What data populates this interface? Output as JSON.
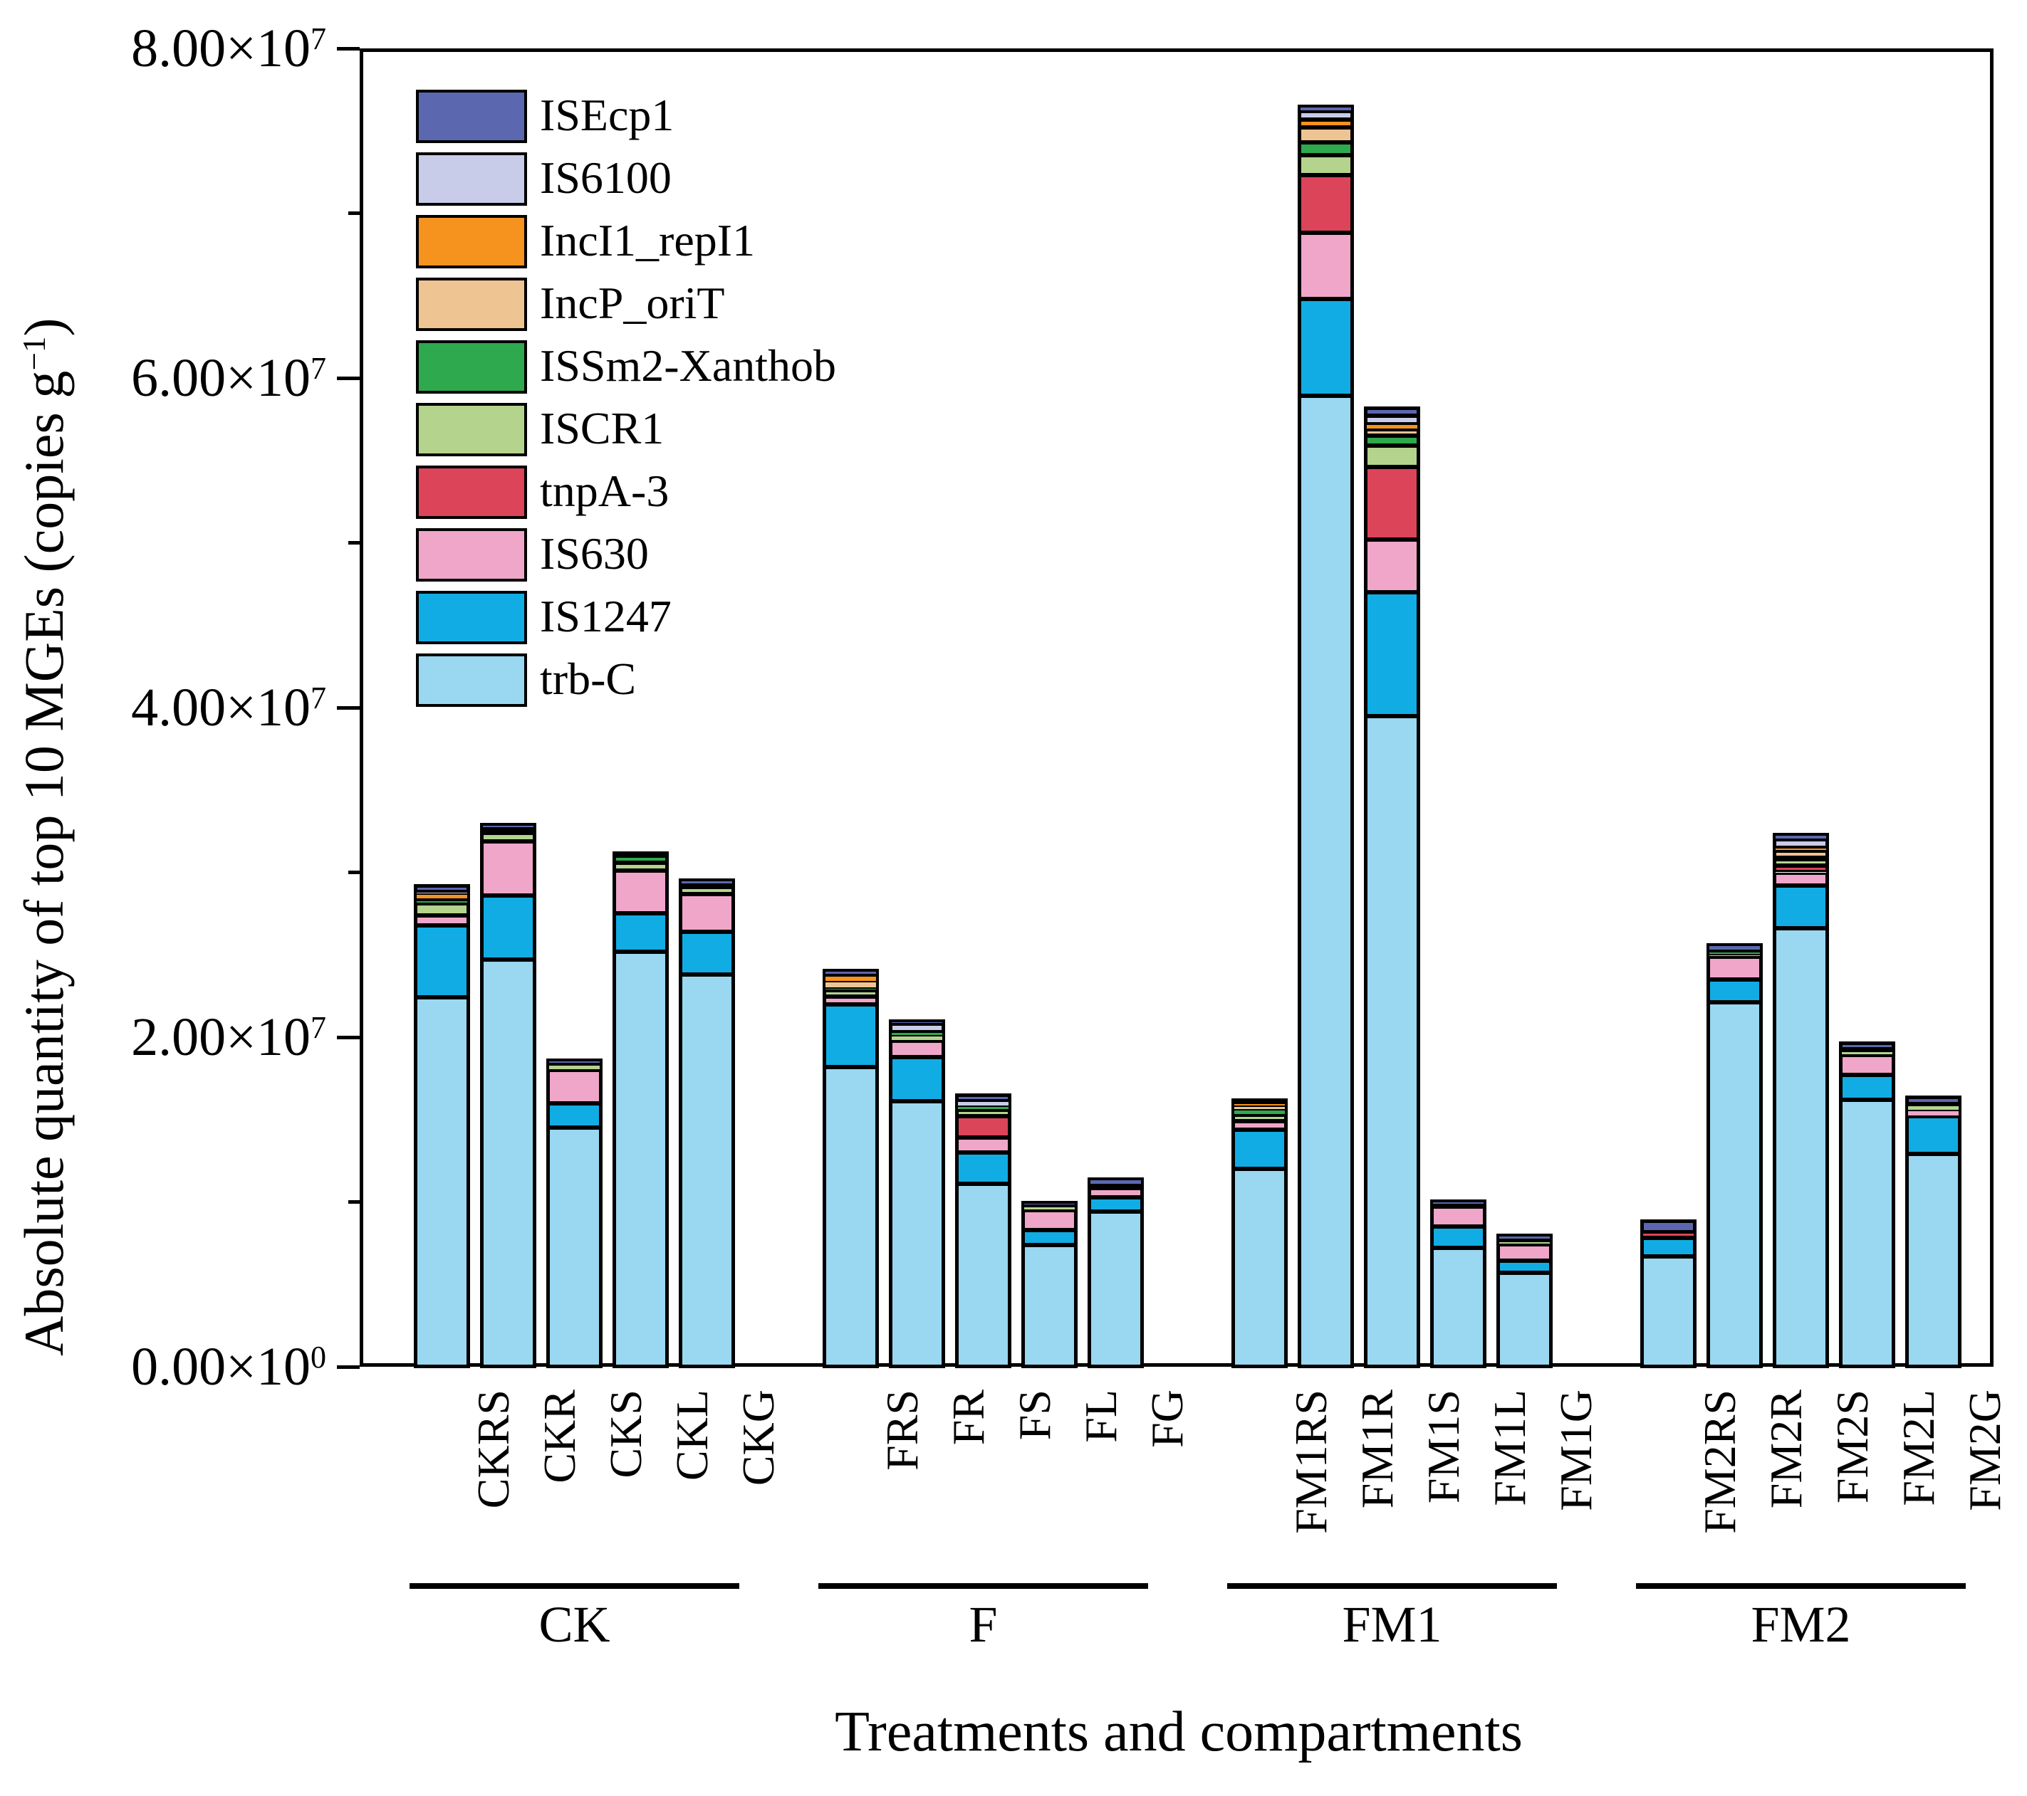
{
  "figure": {
    "y_axis": {
      "title_parts": [
        {
          "text": "Absolute quantity of top 10 MGEs (copies g"
        },
        {
          "text": "−1",
          "sup": true
        },
        {
          "text": ")"
        }
      ],
      "major_ticks": [
        {
          "mantissa": "0.00×10",
          "exp": "0",
          "value": 0
        },
        {
          "mantissa": "2.00×10",
          "exp": "7",
          "value": 2
        },
        {
          "mantissa": "4.00×10",
          "exp": "7",
          "value": 4
        },
        {
          "mantissa": "6.00×10",
          "exp": "7",
          "value": 6
        },
        {
          "mantissa": "8.00×10",
          "exp": "7",
          "value": 8
        }
      ],
      "minor_tick_values": [
        1,
        3,
        5,
        7
      ]
    },
    "x_axis": {
      "title": "Treatments and compartments",
      "groups": [
        {
          "label": "CK",
          "categories": [
            "CKRS",
            "CKR",
            "CKS",
            "CKL",
            "CKG"
          ]
        },
        {
          "label": "F",
          "categories": [
            "FRS",
            "FR",
            "FS",
            "FL",
            "FG"
          ]
        },
        {
          "label": "FM1",
          "categories": [
            "FM1RS",
            "FM1R",
            "FM1S",
            "FM1L",
            "FM1G"
          ]
        },
        {
          "label": "FM2",
          "categories": [
            "FM2RS",
            "FM2R",
            "FM2S",
            "FM2L",
            "FM2G"
          ]
        }
      ]
    },
    "legend": {
      "items": [
        {
          "label": "ISEcp1",
          "color": "#5B68AF"
        },
        {
          "label": "IS6100",
          "color": "#C8CCE9"
        },
        {
          "label": "IncI1_repI1",
          "color": "#F6921E"
        },
        {
          "label": "IncP_oriT",
          "color": "#EFC493"
        },
        {
          "label": "ISSm2-Xanthob",
          "color": "#2FA94D"
        },
        {
          "label": "ISCR1",
          "color": "#B4D48D"
        },
        {
          "label": "tnpA-3",
          "color": "#DC4459"
        },
        {
          "label": "IS630",
          "color": "#EFA6C9"
        },
        {
          "label": "IS1247",
          "color": "#12ACE4"
        },
        {
          "label": "trb-C",
          "color": "#9AD7F1"
        }
      ]
    }
  },
  "chart_data": {
    "type": "bar",
    "stacked": true,
    "title": "",
    "xlabel": "Treatments and compartments",
    "ylabel": "Absolute quantity of top 10 MGEs (copies g⁻¹)",
    "value_unit": "×10⁷ copies g⁻¹",
    "ylim": [
      0,
      8
    ],
    "grid": false,
    "legend_position": "upper-left-inside",
    "categories": [
      "CKRS",
      "CKR",
      "CKS",
      "CKL",
      "CKG",
      "FRS",
      "FR",
      "FS",
      "FL",
      "FG",
      "FM1RS",
      "FM1R",
      "FM1S",
      "FM1L",
      "FM1G",
      "FM2RS",
      "FM2R",
      "FM2S",
      "FM2L",
      "FM2G"
    ],
    "stacking_order_bottom_to_top": [
      "trb-C",
      "IS1247",
      "IS630",
      "tnpA-3",
      "ISCR1",
      "ISSm2-Xanthob",
      "IncP_oriT",
      "IncI1_repI1",
      "IS6100",
      "ISEcp1"
    ],
    "series": [
      {
        "name": "ISEcp1",
        "color": "#5B68AF",
        "values": [
          0.04,
          0.02,
          0.02,
          0.015,
          0.025,
          0.025,
          0.02,
          0.04,
          0.02,
          0.035,
          0.015,
          0.03,
          0.05,
          0.02,
          0.025,
          0.07,
          0.035,
          0.03,
          0.04,
          0.04
        ]
      },
      {
        "name": "IS6100",
        "color": "#C8CCE9",
        "values": [
          0.01,
          0.01,
          0.005,
          0.005,
          0.01,
          0.01,
          0.05,
          0.03,
          0.005,
          0.005,
          0.005,
          0.05,
          0.05,
          0.005,
          0.005,
          0.005,
          0.005,
          0.05,
          0.005,
          0.005
        ]
      },
      {
        "name": "IncI1_repI1",
        "color": "#F6921E",
        "values": [
          0.03,
          0.005,
          0,
          0,
          0,
          0.035,
          0,
          0,
          0,
          0,
          0.02,
          0.05,
          0.03,
          0,
          0,
          0,
          0,
          0.02,
          0,
          0
        ]
      },
      {
        "name": "IncP_oriT",
        "color": "#EFC493",
        "values": [
          0.01,
          0.005,
          0,
          0,
          0,
          0.035,
          0,
          0,
          0,
          0,
          0.02,
          0.09,
          0.04,
          0,
          0,
          0,
          0,
          0.04,
          0,
          0
        ]
      },
      {
        "name": "ISSm2-Xanthob",
        "color": "#2FA94D",
        "values": [
          0.02,
          0.01,
          0.005,
          0.04,
          0.01,
          0.015,
          0.02,
          0.02,
          0.005,
          0.005,
          0.03,
          0.08,
          0.06,
          0.005,
          0.01,
          0,
          0.02,
          0.01,
          0.005,
          0.005
        ]
      },
      {
        "name": "ISCR1",
        "color": "#B4D48D",
        "values": [
          0.07,
          0.05,
          0.03,
          0.05,
          0.04,
          0.04,
          0.03,
          0.04,
          0.02,
          0.01,
          0.04,
          0.12,
          0.13,
          0.005,
          0.015,
          0,
          0.01,
          0.04,
          0.025,
          0.03
        ]
      },
      {
        "name": "tnpA-3",
        "color": "#DC4459",
        "values": [
          0,
          0,
          0,
          0,
          0,
          0,
          0,
          0.13,
          0,
          0,
          0,
          0.35,
          0.44,
          0,
          0,
          0.02,
          0,
          0.04,
          0,
          0
        ]
      },
      {
        "name": "IS630",
        "color": "#EFA6C9",
        "values": [
          0.06,
          0.33,
          0.2,
          0.26,
          0.23,
          0.045,
          0.1,
          0.09,
          0.12,
          0.055,
          0.05,
          0.4,
          0.32,
          0.12,
          0.1,
          0.01,
          0.14,
          0.08,
          0.12,
          0.035
        ]
      },
      {
        "name": "IS1247",
        "color": "#12ACE4",
        "values": [
          0.44,
          0.39,
          0.15,
          0.23,
          0.26,
          0.38,
          0.27,
          0.19,
          0.09,
          0.09,
          0.24,
          0.59,
          0.75,
          0.13,
          0.075,
          0.11,
          0.14,
          0.26,
          0.15,
          0.23
        ]
      },
      {
        "name": "trb-C",
        "color": "#9AD7F1",
        "values": [
          2.24,
          2.47,
          1.45,
          2.52,
          2.38,
          1.82,
          1.61,
          1.11,
          0.74,
          0.94,
          1.2,
          5.89,
          3.95,
          0.72,
          0.57,
          0.67,
          2.21,
          2.66,
          1.62,
          1.29
        ]
      }
    ]
  }
}
